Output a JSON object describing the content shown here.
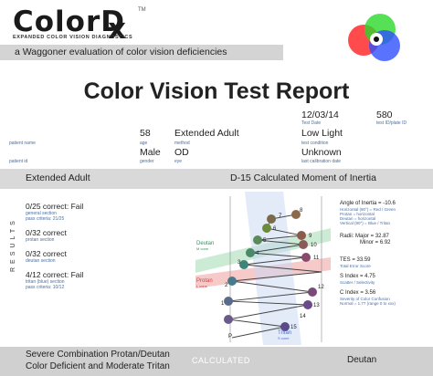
{
  "header": {
    "logo_main": "ColorD",
    "logo_x": "x",
    "logo_tm": "TM",
    "logo_sub": "EXPANDED COLOR VISION DIAGNOSTICS",
    "tagline": "a Waggoner evaluation of color vision deficiencies"
  },
  "report": {
    "title": "Color Vision Test Report",
    "test_date": "12/03/14",
    "test_date_label": "Test Date",
    "test_id": "580",
    "test_id_label": "test ID/plate ID",
    "patient_name_label": "patient name",
    "age": "58",
    "age_label": "age",
    "method": "Extended Adult",
    "method_label": "method",
    "test_condition": "Low Light",
    "test_condition_label": "test condition",
    "patient_id_label": "patient id",
    "gender": "Male",
    "gender_label": "gender",
    "eye": "OD",
    "eye_label": "eye",
    "last_cal": "Unknown",
    "last_cal_label": "last calibration date"
  },
  "band": {
    "left": "Extended Adult",
    "right": "D-15 Calculated Moment of Inertia"
  },
  "results": {
    "vertical_label": "RESULTS",
    "items": [
      {
        "main": "0/25 correct:  Fail",
        "sub1": "general section",
        "sub2": "pass criteria: 21/25"
      },
      {
        "main": "0/32 correct",
        "sub1": "protan section",
        "sub2": ""
      },
      {
        "main": "0/32 correct",
        "sub1": "deutan section",
        "sub2": ""
      },
      {
        "main": "4/12 correct:  Fail",
        "sub1": "tritan (blue) section",
        "sub2": "pass criteria: 10/12"
      }
    ]
  },
  "diagram": {
    "deutan_label": "Deutan",
    "deutan_sub": "M cone",
    "protan_label": "Protan",
    "protan_sub": "L cone",
    "tritan_label": "Tritan",
    "tritan_sub": "S cone",
    "caps": [
      "1",
      "2",
      "3",
      "4",
      "5",
      "6",
      "7",
      "8",
      "9",
      "10",
      "11",
      "12",
      "13",
      "14",
      "15",
      "P"
    ]
  },
  "moi": {
    "angle": "Angle of Inertia = -10.6",
    "angle_sub1": "Horizontal (90°) = Red / Green",
    "angle_sub2": "Protan = horizontal",
    "angle_sub3": "Deutan = horizontal",
    "angle_sub4": "Vertical (90°) = Blue / Tritan",
    "radii_major": "Radii:  Major = 32.87",
    "radii_minor": "Minor = 6.92",
    "tes": "TES = 33.59",
    "tes_sub": "Total Error Score",
    "s_index": "S Index = 4.75",
    "s_index_sub": "Scatter / Selectivity",
    "c_index": "C Index = 3.56",
    "c_index_sub1": "Severity of Color Confusion",
    "c_index_sub2": "Normal = 1.77 (range 0 to xxx)"
  },
  "footer": {
    "left_line1": "Severe Combination Protan/Deutan",
    "left_line2": "Color Deficient  and Moderate Tritan",
    "center": "CALCULATED",
    "right": "Deutan"
  }
}
